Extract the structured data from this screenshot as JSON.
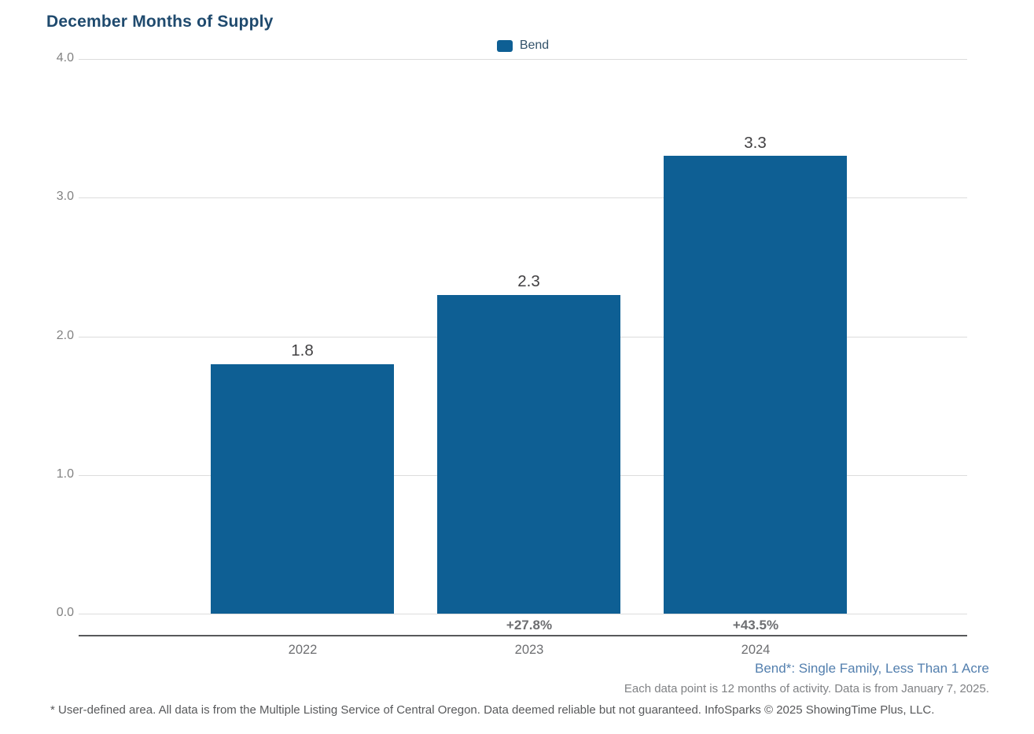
{
  "chart": {
    "title": "December Months of Supply",
    "legend": [
      {
        "label": "Bend",
        "color": "#0e5f94"
      }
    ],
    "y_ticks": [
      "4.0",
      "3.0",
      "2.0",
      "1.0",
      "0.0"
    ],
    "bars": [
      {
        "year": "2022",
        "value_label": "1.8",
        "pct_change": ""
      },
      {
        "year": "2023",
        "value_label": "2.3",
        "pct_change": "+27.8%"
      },
      {
        "year": "2024",
        "value_label": "3.3",
        "pct_change": "+43.5%"
      }
    ]
  },
  "chart_data": {
    "type": "bar",
    "title": "December Months of Supply",
    "categories": [
      "2022",
      "2023",
      "2024"
    ],
    "series": [
      {
        "name": "Bend",
        "values": [
          1.8,
          2.3,
          3.3
        ]
      }
    ],
    "value_labels": [
      "1.8",
      "2.3",
      "3.3"
    ],
    "pct_change_labels": [
      "",
      "+27.8%",
      "+43.5%"
    ],
    "xlabel": "",
    "ylabel": "",
    "ylim": [
      0,
      4.0
    ],
    "yticks": [
      0.0,
      1.0,
      2.0,
      3.0,
      4.0
    ],
    "grid": true,
    "legend_position": "top-center",
    "bar_color": "#0e5f94"
  },
  "footnotes": {
    "series_definition": "Bend*: Single Family, Less Than 1 Acre",
    "data_note": "Each data point is 12 months of activity. Data is from January 7, 2025.",
    "disclaimer": "* User-defined area. All data is from the Multiple Listing Service of Central Oregon. Data deemed reliable but not guaranteed. InfoSparks © 2025 ShowingTime Plus, LLC."
  }
}
